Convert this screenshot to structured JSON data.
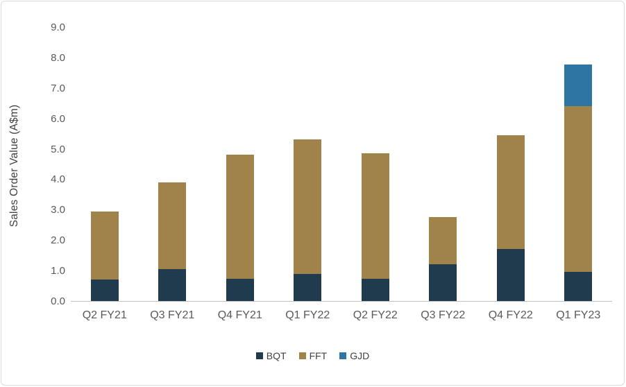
{
  "chart_data": {
    "type": "bar",
    "stacked": true,
    "title": "",
    "xlabel": "",
    "ylabel": "Sales Order Value (A$m)",
    "ylim": [
      0,
      9
    ],
    "ytick_labels": [
      "0.0",
      "1.0",
      "2.0",
      "3.0",
      "4.0",
      "5.0",
      "6.0",
      "7.0",
      "8.0",
      "9.0"
    ],
    "grid": false,
    "legend_position": "bottom",
    "categories": [
      "Q2 FY21",
      "Q3 FY21",
      "Q4 FY21",
      "Q1 FY22",
      "Q2 FY22",
      "Q3 FY22",
      "Q4 FY22",
      "Q1 FY23"
    ],
    "series": [
      {
        "name": "BQT",
        "color": "#203b4d",
        "values": [
          0.7,
          1.05,
          0.72,
          0.9,
          0.73,
          1.2,
          1.7,
          0.95
        ]
      },
      {
        "name": "FFT",
        "color": "#a0834a",
        "values": [
          2.25,
          2.85,
          4.08,
          4.4,
          4.12,
          1.55,
          3.75,
          5.45
        ]
      },
      {
        "name": "GJD",
        "color": "#2e75a4",
        "values": [
          0,
          0,
          0,
          0,
          0,
          0,
          0,
          1.38
        ]
      }
    ]
  }
}
